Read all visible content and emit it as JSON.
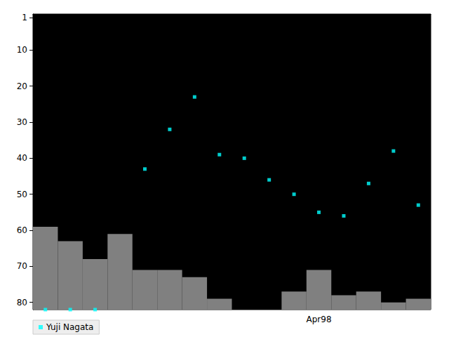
{
  "chart_data": {
    "type": "scatter",
    "categories": [
      null,
      null,
      null,
      null,
      null,
      null,
      null,
      null,
      null,
      null,
      null,
      "Apr98",
      null,
      null,
      null,
      null
    ],
    "ylim": [
      82,
      0
    ],
    "yticks": [
      1,
      10,
      20,
      30,
      40,
      50,
      60,
      70,
      80
    ],
    "legend": "lower left",
    "series": [
      {
        "name": "Yuji Nagata",
        "type": "scatter",
        "marker": "square",
        "color": "#00ffff",
        "values": [
          82,
          82,
          82,
          null,
          43,
          32,
          23,
          39,
          40,
          46,
          50,
          55,
          56,
          47,
          38,
          53
        ]
      },
      {
        "type": "bar",
        "color": "#808080",
        "values": [
          59,
          63,
          68,
          61,
          71,
          71,
          73,
          79,
          null,
          null,
          77,
          71,
          78,
          77,
          80,
          79
        ]
      }
    ]
  }
}
